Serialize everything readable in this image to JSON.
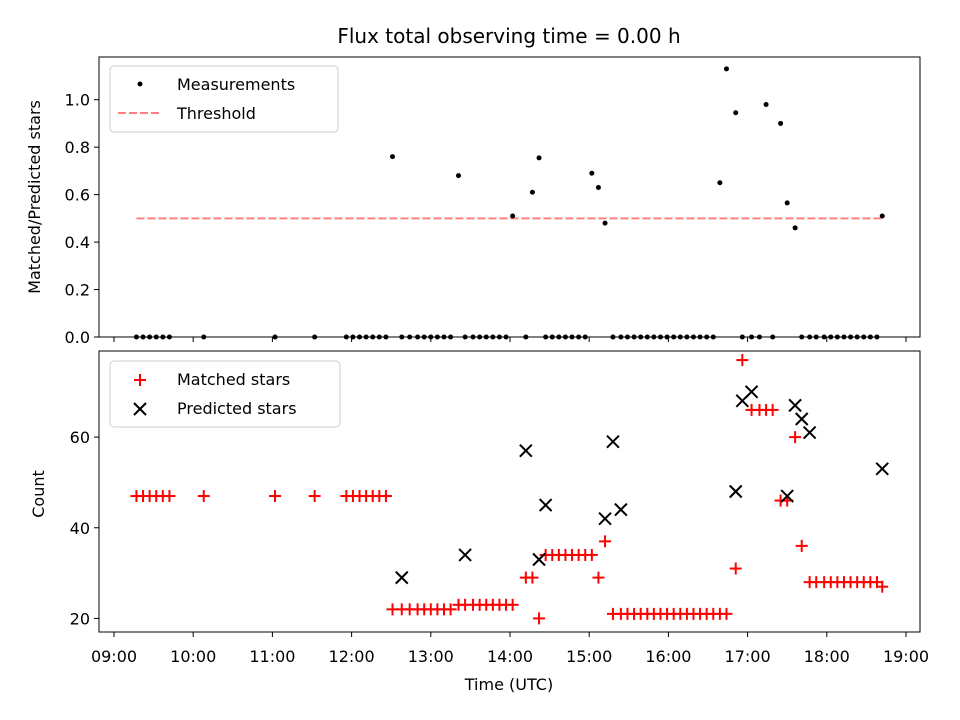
{
  "chart_data": [
    {
      "type": "scatter",
      "title": "Flux total observing time = 0.00 h",
      "xlabel": "",
      "ylabel": "Matched/Predicted stars",
      "xlim": [
        "09:00",
        "19:00"
      ],
      "ylim": [
        0,
        1.18
      ],
      "yticks": [
        "0.0",
        "0.2",
        "0.4",
        "0.6",
        "0.8",
        "1.0"
      ],
      "legend": {
        "position": "top-left",
        "entries": [
          "Measurements",
          "Threshold"
        ]
      },
      "threshold": {
        "name": "Threshold",
        "value": 0.5,
        "x_start": "09:17",
        "x_end": "18:42",
        "color": "#ff8080"
      },
      "series": [
        {
          "name": "Measurements",
          "color": "#000000",
          "x": [
            "09:17",
            "09:22",
            "09:27",
            "09:32",
            "09:37",
            "09:42",
            "10:08",
            "11:02",
            "11:32",
            "11:56",
            "12:01",
            "12:06",
            "12:11",
            "12:16",
            "12:21",
            "12:26",
            "12:31",
            "12:38",
            "12:44",
            "12:50",
            "12:55",
            "13:00",
            "13:05",
            "13:10",
            "13:15",
            "13:21",
            "13:26",
            "13:32",
            "13:37",
            "13:42",
            "13:47",
            "13:52",
            "13:57",
            "14:02",
            "14:12",
            "14:17",
            "14:22",
            "14:27",
            "14:32",
            "14:37",
            "14:42",
            "14:47",
            "14:52",
            "14:57",
            "15:02",
            "15:07",
            "15:12",
            "15:18",
            "15:24",
            "15:29",
            "15:34",
            "15:39",
            "15:44",
            "15:49",
            "15:54",
            "15:59",
            "16:04",
            "16:09",
            "16:14",
            "16:19",
            "16:24",
            "16:29",
            "16:34",
            "16:39",
            "16:44",
            "16:51",
            "16:56",
            "17:03",
            "17:09",
            "17:14",
            "17:19",
            "17:25",
            "17:30",
            "17:36",
            "17:41",
            "17:47",
            "17:52",
            "17:58",
            "18:03",
            "18:08",
            "18:13",
            "18:18",
            "18:23",
            "18:28",
            "18:33",
            "18:38",
            "18:42"
          ],
          "y": [
            0,
            0,
            0,
            0,
            0,
            0,
            0,
            0,
            0,
            0,
            0,
            0,
            0,
            0,
            0,
            0,
            0.76,
            0,
            0,
            0,
            0,
            0,
            0,
            0,
            0,
            0.68,
            0,
            0,
            0,
            0,
            0,
            0,
            0,
            0.51,
            0,
            0.61,
            0.755,
            0,
            0,
            0,
            0,
            0,
            0,
            0,
            0.69,
            0.63,
            0.48,
            0,
            0,
            0,
            0,
            0,
            0,
            0,
            0,
            0,
            0,
            0,
            0,
            0,
            0,
            0,
            0,
            0.65,
            1.13,
            0.945,
            0,
            0,
            0,
            0.98,
            0,
            0.9,
            0.565,
            0.46,
            0,
            0,
            0,
            0,
            0,
            0,
            0,
            0,
            0,
            0,
            0,
            0,
            0.51
          ]
        }
      ]
    },
    {
      "type": "scatter",
      "title": "",
      "xlabel": "Time (UTC)",
      "ylabel": "Count",
      "xlim": [
        "09:00",
        "19:00"
      ],
      "ylim": [
        17,
        79
      ],
      "yticks": [
        "20",
        "40",
        "60"
      ],
      "xticks": [
        "09:00",
        "10:00",
        "11:00",
        "12:00",
        "13:00",
        "14:00",
        "15:00",
        "16:00",
        "17:00",
        "18:00",
        "19:00"
      ],
      "legend": {
        "position": "top-left",
        "entries": [
          "Matched stars",
          "Predicted stars"
        ]
      },
      "series": [
        {
          "name": "Matched stars",
          "color": "#ff0000",
          "marker": "+",
          "x": [
            "09:17",
            "09:22",
            "09:27",
            "09:32",
            "09:37",
            "09:42",
            "10:08",
            "11:02",
            "11:32",
            "11:56",
            "12:01",
            "12:06",
            "12:11",
            "12:16",
            "12:21",
            "12:26",
            "12:31",
            "12:38",
            "12:44",
            "12:50",
            "12:55",
            "13:00",
            "13:05",
            "13:10",
            "13:15",
            "13:21",
            "13:26",
            "13:32",
            "13:37",
            "13:42",
            "13:47",
            "13:52",
            "13:57",
            "14:02",
            "14:12",
            "14:17",
            "14:22",
            "14:27",
            "14:32",
            "14:37",
            "14:42",
            "14:47",
            "14:52",
            "14:57",
            "15:02",
            "15:07",
            "15:12",
            "15:18",
            "15:24",
            "15:29",
            "15:34",
            "15:39",
            "15:44",
            "15:49",
            "15:54",
            "15:59",
            "16:04",
            "16:09",
            "16:14",
            "16:19",
            "16:24",
            "16:29",
            "16:34",
            "16:39",
            "16:44",
            "16:51",
            "16:56",
            "17:03",
            "17:09",
            "17:14",
            "17:19",
            "17:25",
            "17:30",
            "17:36",
            "17:41",
            "17:47",
            "17:52",
            "17:58",
            "18:03",
            "18:08",
            "18:13",
            "18:18",
            "18:23",
            "18:28",
            "18:33",
            "18:38",
            "18:42"
          ],
          "y": [
            47,
            47,
            47,
            47,
            47,
            47,
            47,
            47,
            47,
            47,
            47,
            47,
            47,
            47,
            47,
            47,
            22,
            22,
            22,
            22,
            22,
            22,
            22,
            22,
            22,
            23,
            23,
            23,
            23,
            23,
            23,
            23,
            23,
            23,
            29,
            29,
            20,
            34,
            34,
            34,
            34,
            34,
            34,
            34,
            34,
            29,
            37,
            21,
            21,
            21,
            21,
            21,
            21,
            21,
            21,
            21,
            21,
            21,
            21,
            21,
            21,
            21,
            21,
            21,
            21,
            31,
            77,
            66,
            66,
            66,
            66,
            46,
            46,
            60,
            36,
            28,
            28,
            28,
            28,
            28,
            28,
            28,
            28,
            28,
            28,
            28,
            27
          ]
        },
        {
          "name": "Predicted stars",
          "color": "#000000",
          "marker": "x",
          "x": [
            "12:38",
            "13:26",
            "14:12",
            "14:22",
            "14:27",
            "15:12",
            "15:18",
            "15:24",
            "16:51",
            "16:56",
            "17:03",
            "17:30",
            "17:36",
            "17:41",
            "17:47",
            "18:42"
          ],
          "y": [
            29,
            34,
            57,
            33,
            45,
            42,
            59,
            44,
            48,
            68,
            70,
            47,
            67,
            64,
            61,
            53
          ]
        }
      ]
    }
  ]
}
